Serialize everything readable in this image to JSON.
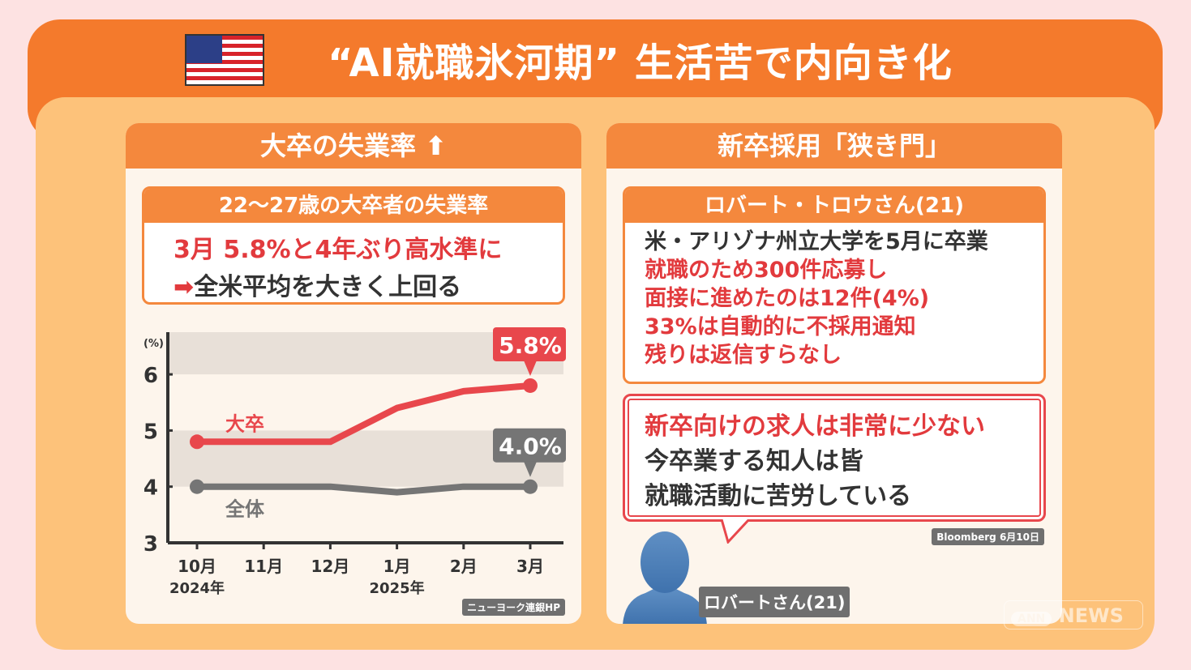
{
  "title": "“AI就職氷河期” 生活苦で内向き化",
  "left": {
    "header": "大卒の失業率",
    "box_title": "22〜27歳の大卒者の失業率",
    "line1": "3月 5.8%と4年ぶり高水準に",
    "arrow": "➡",
    "line2": "全米平均を大きく上回る",
    "source": "ニューヨーク連銀HP"
  },
  "right": {
    "header": "新卒採用「狭き門」",
    "box_title": "ロバート・トロウさん(21)",
    "lines": [
      "米・アリゾナ州立大学を5月に卒業",
      "就職のため300件応募し",
      "面接に進めたのは12件(4%)",
      "33%は自動的に不採用通知",
      "残りは返信すらなし"
    ],
    "quote": [
      "新卒向けの求人は非常に少ない",
      "今卒業する知人は皆",
      "就職活動に苦労している"
    ],
    "source": "Bloomberg 6月10日",
    "person_label": "ロバートさん(21)"
  },
  "watermark": {
    "ann": "ANN",
    "news": "NEWS"
  },
  "colors": {
    "red": "#e8474c",
    "gray": "#757575",
    "orange": "#f47a2c"
  },
  "chart_data": {
    "type": "line",
    "ylabel": "(%)",
    "ylim": [
      3,
      6.7
    ],
    "yticks": [
      3,
      4,
      5,
      6
    ],
    "categories": [
      "10月",
      "11月",
      "12月",
      "1月",
      "2月",
      "3月"
    ],
    "year_labels": [
      {
        "at": "10月",
        "label": "2024年"
      },
      {
        "at": "1月",
        "label": "2025年"
      }
    ],
    "series": [
      {
        "name": "大卒",
        "values": [
          4.8,
          4.8,
          4.8,
          5.4,
          5.7,
          5.8
        ],
        "color": "#e8474c",
        "callout": "5.8%"
      },
      {
        "name": "全体",
        "values": [
          4.0,
          4.0,
          4.0,
          3.9,
          4.0,
          4.0
        ],
        "color": "#757575",
        "callout": "4.0%"
      }
    ]
  }
}
